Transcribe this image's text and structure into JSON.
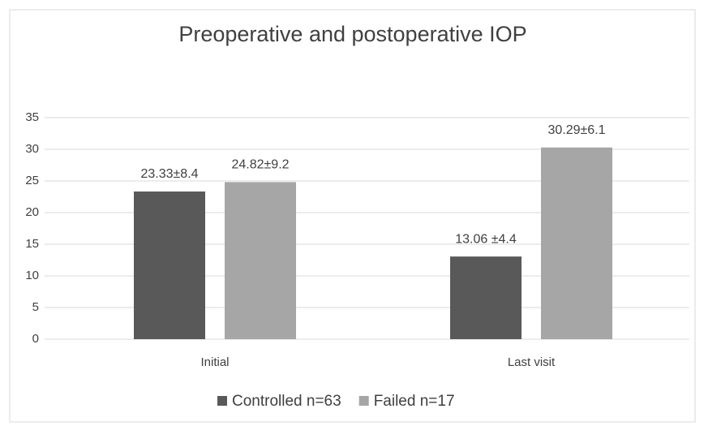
{
  "chart_data": {
    "type": "bar",
    "title": "Preoperative and postoperative IOP",
    "categories": [
      "Initial",
      "Last visit"
    ],
    "series": [
      {
        "name": "Controlled n=63",
        "color": "#595959",
        "values": [
          23.33,
          13.06
        ],
        "value_labels": [
          "23.33±8.4",
          "13.06 ±4.4"
        ]
      },
      {
        "name": "Failed n=17",
        "color": "#a6a6a6",
        "values": [
          24.82,
          30.29
        ],
        "value_labels": [
          "24.82±9.2",
          "30.29±6.1"
        ]
      }
    ],
    "ylim": [
      0,
      35
    ],
    "yticks": [
      0,
      5,
      10,
      15,
      20,
      25,
      30,
      35
    ],
    "grid": true,
    "legend": "bottom"
  }
}
